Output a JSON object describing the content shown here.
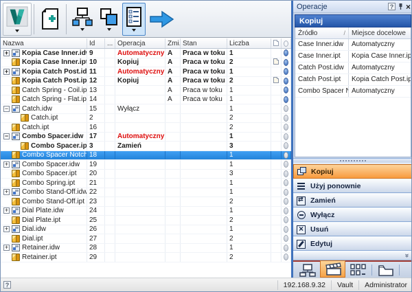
{
  "colors": {
    "selection_blue": "#2e8fe8",
    "operation_red": "#dd0d0d",
    "active_orange": "#f89b3e",
    "panel_header_blue": "#2456a8",
    "status_dot_blue": "#5f8cd0"
  },
  "toolbar": {
    "icons": [
      "vault-logo-icon",
      "new-copy-icon",
      "hierarchy-view-icon",
      "copy-design-icon",
      "list-view-icon",
      "go-arrow-icon"
    ]
  },
  "main_table": {
    "headers": {
      "name": "Nazwa",
      "id": "Id",
      "dots": "...",
      "op": "Operacja",
      "zmi": "Zmi...",
      "stan": "Stan",
      "liczba": "Liczba"
    },
    "header_icons": [
      "folder-column-icon",
      "status-column-icon"
    ],
    "rows": [
      {
        "name": "Kopia Case Inner.idw",
        "id": "9",
        "op": "Automatyczny",
        "opRed": true,
        "zmi": "A",
        "stan": "Praca w toku",
        "liczba": "1",
        "icon": "idw",
        "expand": "plus",
        "child": false,
        "bold": true,
        "folder": false,
        "dot": "blue",
        "selected": false
      },
      {
        "name": "Kopia Case Inner.ipt",
        "id": "10",
        "op": "Kopiuj",
        "opRed": false,
        "zmi": "A",
        "stan": "Praca w toku",
        "liczba": "2",
        "icon": "ipt",
        "expand": "",
        "child": false,
        "bold": true,
        "folder": true,
        "dot": "blue",
        "selected": false
      },
      {
        "name": "Kopia Catch Post.idw",
        "id": "11",
        "op": "Automatyczny",
        "opRed": true,
        "zmi": "A",
        "stan": "Praca w toku",
        "liczba": "1",
        "icon": "idw",
        "expand": "plus",
        "child": false,
        "bold": true,
        "folder": false,
        "dot": "blue",
        "selected": false
      },
      {
        "name": "Kopia Catch Post.ipt",
        "id": "12",
        "op": "Kopiuj",
        "opRed": false,
        "zmi": "A",
        "stan": "Praca w toku",
        "liczba": "2",
        "icon": "ipt",
        "expand": "",
        "child": false,
        "bold": true,
        "folder": true,
        "dot": "blue",
        "selected": false
      },
      {
        "name": "Catch Spring - Coil.ipt",
        "id": "13",
        "op": "",
        "opRed": false,
        "zmi": "A",
        "stan": "Praca w toku",
        "liczba": "1",
        "icon": "ipt",
        "expand": "",
        "child": false,
        "bold": false,
        "folder": false,
        "dot": "blue",
        "selected": false
      },
      {
        "name": "Catch Spring - Flat.ipt",
        "id": "14",
        "op": "",
        "opRed": false,
        "zmi": "A",
        "stan": "Praca w toku",
        "liczba": "1",
        "icon": "ipt",
        "expand": "",
        "child": false,
        "bold": false,
        "folder": false,
        "dot": "blue",
        "selected": false
      },
      {
        "name": "Catch.idw",
        "id": "15",
        "op": "Wyłącz",
        "opRed": false,
        "zmi": "",
        "stan": "",
        "liczba": "1",
        "icon": "idw",
        "expand": "minus",
        "child": false,
        "bold": false,
        "folder": false,
        "dot": "gray",
        "selected": false
      },
      {
        "name": "Catch.ipt",
        "id": "2",
        "op": "",
        "opRed": false,
        "zmi": "",
        "stan": "",
        "liczba": "2",
        "icon": "ipt",
        "expand": "",
        "child": true,
        "bold": false,
        "folder": false,
        "dot": "gray",
        "selected": false
      },
      {
        "name": "Catch.ipt",
        "id": "16",
        "op": "",
        "opRed": false,
        "zmi": "",
        "stan": "",
        "liczba": "2",
        "icon": "ipt",
        "expand": "",
        "child": false,
        "bold": false,
        "folder": false,
        "dot": "gray",
        "selected": false
      },
      {
        "name": "Combo Spacer.idw",
        "id": "17",
        "op": "Automatyczny",
        "opRed": true,
        "zmi": "",
        "stan": "",
        "liczba": "1",
        "icon": "idw",
        "expand": "minus",
        "child": false,
        "bold": true,
        "folder": false,
        "dot": "gray",
        "selected": false
      },
      {
        "name": "Combo Spacer.ipt",
        "id": "3",
        "op": "Zamień",
        "opRed": false,
        "zmi": "",
        "stan": "",
        "liczba": "3",
        "icon": "ipt",
        "expand": "",
        "child": true,
        "bold": true,
        "folder": false,
        "dot": "gray",
        "selected": false
      },
      {
        "name": "Combo Spacer Notch.ipt",
        "id": "18",
        "op": "",
        "opRed": false,
        "zmi": "",
        "stan": "",
        "liczba": "1",
        "icon": "ipt",
        "expand": "",
        "child": false,
        "bold": false,
        "folder": false,
        "dot": "selected",
        "selected": true
      },
      {
        "name": "Combo Spacer.idw",
        "id": "19",
        "op": "",
        "opRed": false,
        "zmi": "",
        "stan": "",
        "liczba": "1",
        "icon": "idw",
        "expand": "plus",
        "child": false,
        "bold": false,
        "folder": false,
        "dot": "gray",
        "selected": false
      },
      {
        "name": "Combo Spacer.ipt",
        "id": "20",
        "op": "",
        "opRed": false,
        "zmi": "",
        "stan": "",
        "liczba": "3",
        "icon": "ipt",
        "expand": "",
        "child": false,
        "bold": false,
        "folder": false,
        "dot": "gray",
        "selected": false
      },
      {
        "name": "Combo Spring.ipt",
        "id": "21",
        "op": "",
        "opRed": false,
        "zmi": "",
        "stan": "",
        "liczba": "1",
        "icon": "ipt",
        "expand": "",
        "child": false,
        "bold": false,
        "folder": false,
        "dot": "gray",
        "selected": false
      },
      {
        "name": "Combo Stand-Off.idw",
        "id": "22",
        "op": "",
        "opRed": false,
        "zmi": "",
        "stan": "",
        "liczba": "1",
        "icon": "idw",
        "expand": "plus",
        "child": false,
        "bold": false,
        "folder": false,
        "dot": "gray",
        "selected": false
      },
      {
        "name": "Combo Stand-Off.ipt",
        "id": "23",
        "op": "",
        "opRed": false,
        "zmi": "",
        "stan": "",
        "liczba": "2",
        "icon": "ipt",
        "expand": "",
        "child": false,
        "bold": false,
        "folder": false,
        "dot": "gray",
        "selected": false
      },
      {
        "name": "Dial Plate.idw",
        "id": "24",
        "op": "",
        "opRed": false,
        "zmi": "",
        "stan": "",
        "liczba": "1",
        "icon": "idw",
        "expand": "plus",
        "child": false,
        "bold": false,
        "folder": false,
        "dot": "gray",
        "selected": false
      },
      {
        "name": "Dial Plate.ipt",
        "id": "25",
        "op": "",
        "opRed": false,
        "zmi": "",
        "stan": "",
        "liczba": "2",
        "icon": "ipt",
        "expand": "",
        "child": false,
        "bold": false,
        "folder": false,
        "dot": "gray",
        "selected": false
      },
      {
        "name": "Dial.idw",
        "id": "26",
        "op": "",
        "opRed": false,
        "zmi": "",
        "stan": "",
        "liczba": "1",
        "icon": "idw",
        "expand": "plus",
        "child": false,
        "bold": false,
        "folder": false,
        "dot": "gray",
        "selected": false
      },
      {
        "name": "Dial.ipt",
        "id": "27",
        "op": "",
        "opRed": false,
        "zmi": "",
        "stan": "",
        "liczba": "2",
        "icon": "ipt",
        "expand": "",
        "child": false,
        "bold": false,
        "folder": false,
        "dot": "gray",
        "selected": false
      },
      {
        "name": "Retainer.idw",
        "id": "28",
        "op": "",
        "opRed": false,
        "zmi": "",
        "stan": "",
        "liczba": "1",
        "icon": "idw",
        "expand": "plus",
        "child": false,
        "bold": false,
        "folder": false,
        "dot": "gray",
        "selected": false
      },
      {
        "name": "Retainer.ipt",
        "id": "29",
        "op": "",
        "opRed": false,
        "zmi": "",
        "stan": "",
        "liczba": "2",
        "icon": "ipt",
        "expand": "",
        "child": false,
        "bold": false,
        "folder": false,
        "dot": "gray",
        "selected": false
      }
    ]
  },
  "operations_panel": {
    "title": "Operacje",
    "titlebar_icons": [
      "help-icon",
      "pin-icon",
      "close-icon"
    ],
    "close_glyph": "×",
    "help_glyph": "?",
    "section_header": "Kopiuj",
    "table": {
      "col1": "Źródło",
      "col2": "Miejsce docelowe",
      "sort_indicator": "/",
      "rows": [
        {
          "src": "Case Inner.idw",
          "dst": "Automatyczny"
        },
        {
          "src": "Case Inner.ipt",
          "dst": "Kopia Case Inner.ipt"
        },
        {
          "src": "Catch Post.idw",
          "dst": "Automatyczny"
        },
        {
          "src": "Catch Post.ipt",
          "dst": "Kopia Catch Post.ipt"
        },
        {
          "src": "Combo Spacer Notc...",
          "dst": "Automatyczny"
        }
      ]
    },
    "actions": [
      {
        "key": "copy",
        "label": "Kopiuj",
        "icon": "copy-icon",
        "active": true
      },
      {
        "key": "reuse",
        "label": "Użyj ponownie",
        "icon": "reuse-icon",
        "active": false
      },
      {
        "key": "replace",
        "label": "Zamień",
        "icon": "replace-icon",
        "active": false
      },
      {
        "key": "exclude",
        "label": "Wyłącz",
        "icon": "exclude-icon",
        "active": false
      },
      {
        "key": "delete",
        "label": "Usuń",
        "icon": "delete-icon",
        "active": false
      },
      {
        "key": "edit",
        "label": "Edytuj",
        "icon": "edit-icon",
        "active": false
      }
    ],
    "more_chevron": "»",
    "tabs": [
      "hierarchy-tab-icon",
      "operations-tab-icon",
      "grid-tab-icon",
      "folder-tab-icon"
    ],
    "active_tab_index": 1
  },
  "status_bar": {
    "help": "?",
    "server": "192.168.9.32",
    "vault": "Vault",
    "user": "Administrator"
  }
}
